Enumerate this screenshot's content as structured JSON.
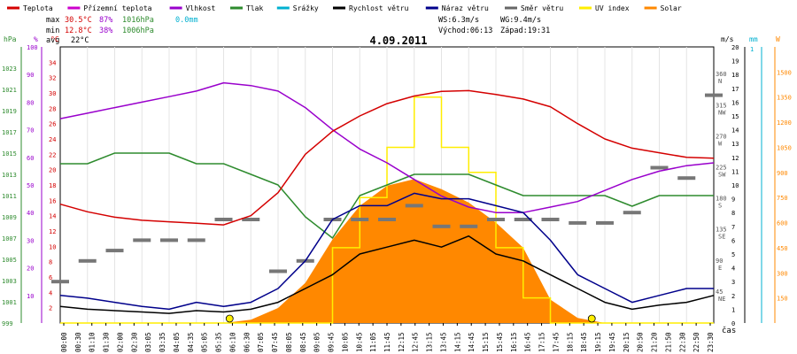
{
  "legend": [
    {
      "label": "Teplota",
      "color": "#d40000"
    },
    {
      "label": "Přízemní teplota",
      "color": "#cc00cc"
    },
    {
      "label": "Vlhkost",
      "color": "#9900cc"
    },
    {
      "label": "Tlak",
      "color": "#2e8b2e"
    },
    {
      "label": "Srážky",
      "color": "#00b0d0"
    },
    {
      "label": "Rychlost větru",
      "color": "#000000"
    },
    {
      "label": "Náraz větru",
      "color": "#00008b"
    },
    {
      "label": "Směr větru",
      "color": "#666666"
    },
    {
      "label": "UV index",
      "color": "#ffee00"
    },
    {
      "label": "Solar",
      "color": "#ff8800"
    }
  ],
  "stats": {
    "max_label": "max",
    "max_temp": "30.5°C",
    "max_hum": "87%",
    "max_press": "1016hPa",
    "max_rain": "0.0mm",
    "min_label": "min",
    "min_temp": "12.8°C",
    "min_hum": "38%",
    "min_press": "1006hPa",
    "avg_label": "avg",
    "avg_temp": "22°C"
  },
  "wind_info": {
    "ws": "WS:6.3m/s",
    "wg": "WG:9.4m/s",
    "sunrise": "Východ:06:13",
    "sunset": "Západ:19:31"
  },
  "date": "4.09.2011",
  "x_axis_label": "čas",
  "colors": {
    "temp": "#d40000",
    "humidity": "#9900cc",
    "pressure": "#2e8b2e",
    "wind": "#000000",
    "gust": "#00008b",
    "dir": "#777777",
    "uv": "#ffee00",
    "solar": "#ff8800",
    "rain": "#00b0d0",
    "sun_marker": "#ffee00"
  },
  "axes": {
    "hpa_title": "hPa",
    "pct_title": "%",
    "temp_title": "°C",
    "ms_title": "m/s",
    "mm_title": "mm",
    "w_title": "W",
    "hpa_ticks": [
      "1023",
      "1021",
      "1019",
      "1017",
      "1015",
      "1013",
      "1011",
      "1009",
      "1007",
      "1005",
      "1003",
      "1001",
      "999"
    ],
    "pct_ticks": [
      "100",
      "90",
      "80",
      "70",
      "60",
      "50",
      "40",
      "30",
      "20",
      "10"
    ],
    "temp_ticks": [
      "34",
      "32",
      "30",
      "28",
      "26",
      "24",
      "22",
      "20",
      "18",
      "16",
      "14",
      "12",
      "10",
      "8",
      "6",
      "4",
      "2"
    ],
    "ms_ticks": [
      "20",
      "19",
      "18",
      "17",
      "16",
      "15",
      "14",
      "13",
      "12",
      "11",
      "10",
      "9",
      "8",
      "7",
      "6",
      "5",
      "4",
      "3",
      "2",
      "1",
      "0"
    ],
    "dir_ticks": [
      "360",
      "315",
      "270",
      "225",
      "180",
      "135",
      "90",
      "45"
    ],
    "dir_labels": [
      "N",
      "NW",
      "W",
      "SW",
      "S",
      "SE",
      "E",
      "NE"
    ],
    "mm_ticks": [
      "1"
    ],
    "w_ticks": [
      "1500",
      "1350",
      "1200",
      "1050",
      "900",
      "750",
      "600",
      "450",
      "300",
      "150"
    ]
  },
  "time_labels": [
    "00:00",
    "00:30",
    "01:10",
    "01:30",
    "02:00",
    "02:30",
    "03:05",
    "03:35",
    "04:05",
    "04:35",
    "05:05",
    "05:35",
    "06:10",
    "06:30",
    "07:05",
    "07:45",
    "08:05",
    "08:45",
    "09:05",
    "09:45",
    "10:05",
    "10:45",
    "11:05",
    "11:45",
    "12:15",
    "12:45",
    "13:15",
    "13:45",
    "14:15",
    "14:45",
    "15:15",
    "15:45",
    "16:15",
    "16:45",
    "17:15",
    "17:45",
    "18:15",
    "18:45",
    "19:15",
    "19:45",
    "20:15",
    "20:50",
    "21:20",
    "21:50",
    "22:30",
    "22:50",
    "23:30"
  ],
  "chart_data": {
    "type": "line",
    "title": "4.09.2011",
    "xlabel": "čas",
    "x_hours": [
      0,
      1,
      2,
      3,
      4,
      5,
      6,
      7,
      8,
      9,
      10,
      11,
      12,
      13,
      14,
      15,
      16,
      17,
      18,
      19,
      20,
      21,
      22,
      23,
      24
    ],
    "series": [
      {
        "name": "Teplota",
        "unit": "°C",
        "ylim": [
          0,
          36
        ],
        "values": [
          15.5,
          14.5,
          13.8,
          13.4,
          13.2,
          13.0,
          12.8,
          14.0,
          17.0,
          22.0,
          25.0,
          27.0,
          28.6,
          29.6,
          30.2,
          30.3,
          29.8,
          29.2,
          28.2,
          26.0,
          24.0,
          22.8,
          22.2,
          21.6,
          21.5
        ]
      },
      {
        "name": "Vlhkost",
        "unit": "%",
        "ylim": [
          0,
          100
        ],
        "values": [
          74,
          76,
          78,
          80,
          82,
          84,
          87,
          86,
          84,
          78,
          70,
          63,
          58,
          52,
          46,
          42,
          40,
          40,
          42,
          44,
          48,
          52,
          55,
          57,
          58
        ]
      },
      {
        "name": "Tlak",
        "unit": "hPa",
        "ylim": [
          999,
          1025
        ],
        "values": [
          1014,
          1014,
          1015,
          1015,
          1015,
          1014,
          1014,
          1013,
          1012,
          1009,
          1007,
          1011,
          1012,
          1013,
          1013,
          1013,
          1012,
          1011,
          1011,
          1011,
          1011,
          1010,
          1011,
          1011,
          1011
        ]
      },
      {
        "name": "Rychlost větru",
        "unit": "m/s",
        "ylim": [
          0,
          20
        ],
        "values": [
          1.2,
          1.0,
          0.9,
          0.8,
          0.7,
          0.9,
          0.8,
          1.0,
          1.5,
          2.5,
          3.5,
          5.0,
          5.5,
          6.0,
          5.5,
          6.3,
          5.0,
          4.5,
          3.5,
          2.5,
          1.5,
          1.0,
          1.3,
          1.5,
          2.0
        ]
      },
      {
        "name": "Náraz větru",
        "unit": "m/s",
        "ylim": [
          0,
          20
        ],
        "values": [
          2.0,
          1.8,
          1.5,
          1.2,
          1.0,
          1.5,
          1.2,
          1.5,
          2.5,
          4.5,
          7.5,
          8.5,
          8.5,
          9.4,
          9.0,
          9.0,
          8.5,
          8.0,
          6.0,
          3.5,
          2.5,
          1.5,
          2.0,
          2.5,
          2.5
        ]
      },
      {
        "name": "Solar",
        "unit": "W",
        "ylim": [
          0,
          1650
        ],
        "values": [
          0,
          0,
          0,
          0,
          0,
          0,
          0,
          20,
          90,
          240,
          500,
          700,
          820,
          860,
          800,
          720,
          600,
          450,
          140,
          30,
          0,
          0,
          0,
          0,
          0
        ]
      },
      {
        "name": "UV index",
        "unit": "W-equivalent",
        "ylim": [
          0,
          1650
        ],
        "values": [
          0,
          0,
          0,
          0,
          0,
          0,
          0,
          0,
          0,
          0,
          450,
          750,
          1050,
          1350,
          1050,
          900,
          450,
          150,
          0,
          0,
          0,
          0,
          0,
          0,
          0
        ]
      },
      {
        "name": "Srážky",
        "unit": "mm",
        "ylim": [
          0,
          1
        ],
        "values": [
          0,
          0,
          0,
          0,
          0,
          0,
          0,
          0,
          0,
          0,
          0,
          0,
          0,
          0,
          0,
          0,
          0,
          0,
          0,
          0,
          0,
          0,
          0,
          0,
          0
        ]
      }
    ],
    "wind_direction": {
      "name": "Směr větru",
      "unit": "°",
      "values": [
        60,
        90,
        105,
        120,
        120,
        120,
        150,
        150,
        75,
        90,
        150,
        150,
        150,
        170,
        140,
        140,
        150,
        150,
        150,
        145,
        145,
        160,
        225,
        210,
        330
      ]
    },
    "sun_markers": [
      {
        "label": "Východ",
        "hour": 6.22
      },
      {
        "label": "Západ",
        "hour": 19.52
      }
    ]
  }
}
